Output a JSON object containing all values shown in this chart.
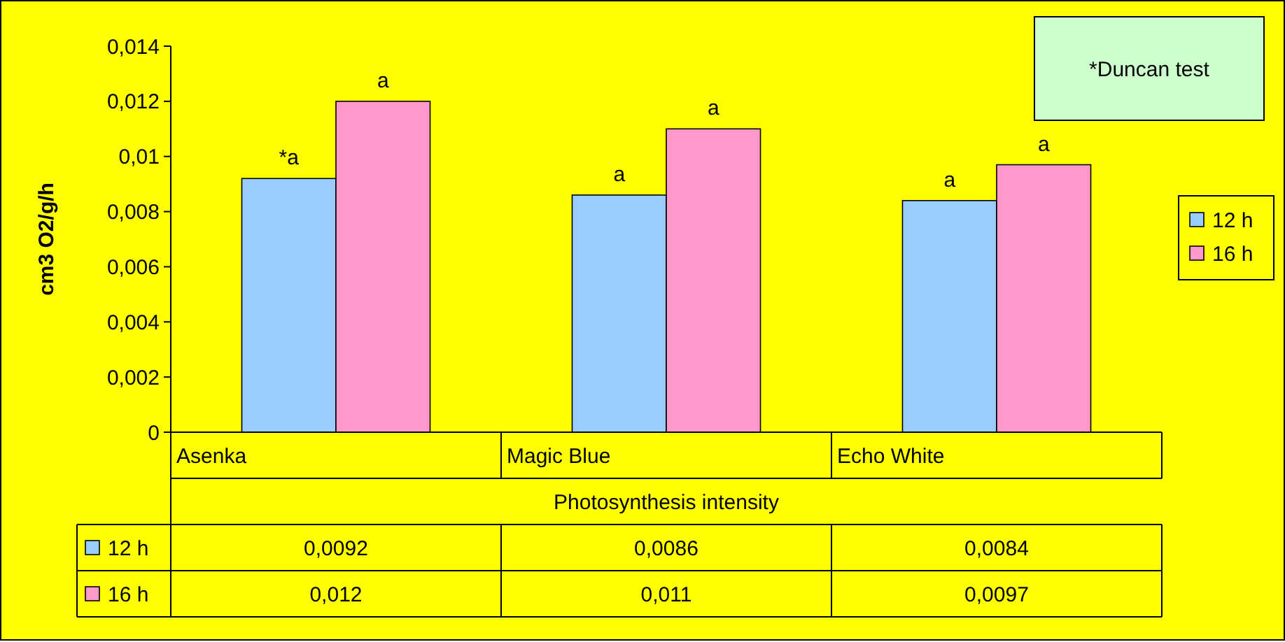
{
  "chart_data": {
    "type": "bar",
    "ylabel": "cm3 O2/g/h",
    "xlabel": "Photosynthesis intensity",
    "categories": [
      "Asenka",
      "Magic Blue",
      "Echo White"
    ],
    "series": [
      {
        "name": "12 h",
        "color": "#99ccff",
        "values": [
          0.0092,
          0.0086,
          0.0084
        ],
        "value_labels": [
          "0,0092",
          "0,0086",
          "0,0084"
        ]
      },
      {
        "name": "16 h",
        "color": "#ff99cc",
        "values": [
          0.012,
          0.011,
          0.0097
        ],
        "value_labels": [
          "0,012",
          "0,011",
          "0,0097"
        ]
      }
    ],
    "ylim": [
      0,
      0.014
    ],
    "yticks": [
      0,
      {
        "value": 0.002,
        "label": "0,002"
      },
      {
        "value": 0.004,
        "label": "0,004"
      },
      {
        "value": 0.006,
        "label": "0,006"
      },
      {
        "value": 0.008,
        "label": "0,008"
      },
      {
        "value": 0.01,
        "label": "0,01"
      },
      {
        "value": 0.012,
        "label": "0,012"
      },
      {
        "value": 0.014,
        "label": "0,014"
      }
    ],
    "legend": "right",
    "grid": false,
    "annotations": [
      "*a",
      "a",
      "a",
      "a",
      "a",
      "a",
      "*Duncan test"
    ]
  }
}
